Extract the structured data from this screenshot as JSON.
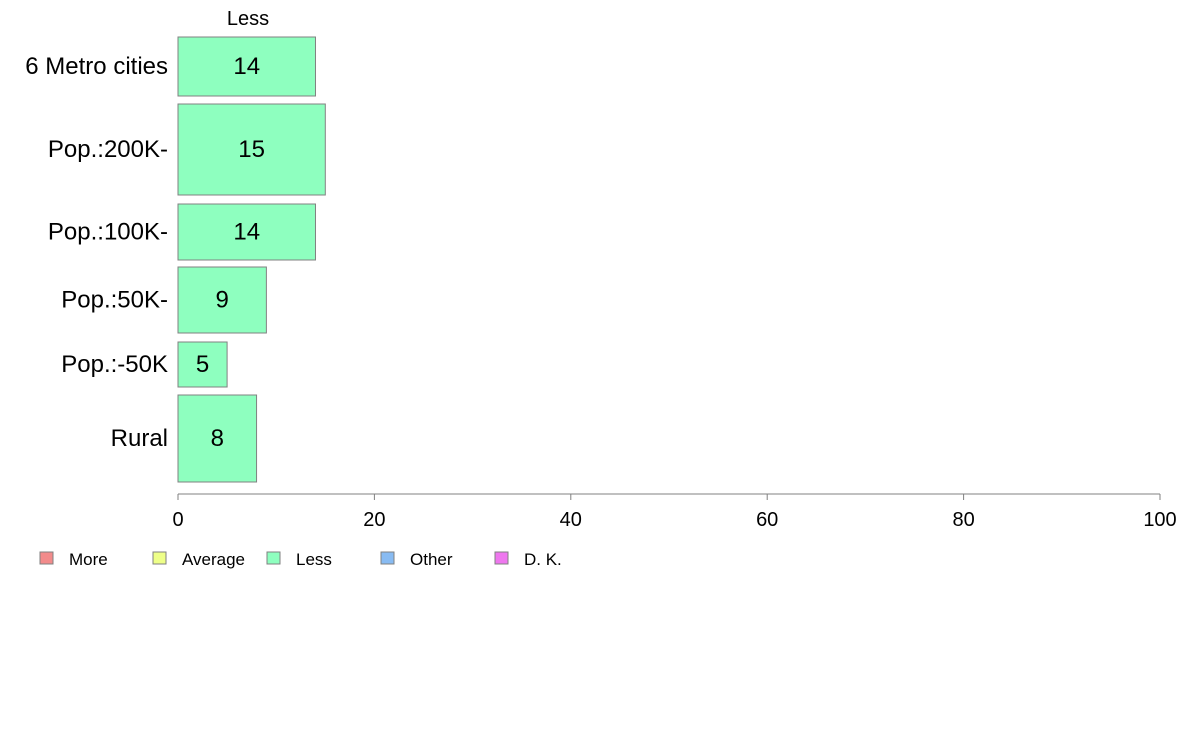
{
  "chart_data": {
    "type": "bar",
    "orientation": "horizontal",
    "variable_width": true,
    "series_title": "Less",
    "categories": [
      "6 Metro cities",
      "Pop.:200K-",
      "Pop.:100K-",
      "Pop.:50K-",
      "Pop.:-50K",
      "Rural"
    ],
    "values": [
      14,
      15,
      14,
      9,
      5,
      8
    ],
    "value_labels": [
      "14",
      "15",
      "14",
      "9",
      "5",
      "8"
    ],
    "xlim": [
      0,
      100
    ],
    "xticks": [
      0,
      20,
      40,
      60,
      80,
      100
    ],
    "xtick_labels": [
      "0",
      "20",
      "40",
      "60",
      "80",
      "100"
    ],
    "grid": false,
    "bar_color": "#8effbf",
    "bar_edge_color": "#808080",
    "legend_position": "bottom-left",
    "legend": [
      {
        "label": "More",
        "color": "#f28b8b"
      },
      {
        "label": "Average",
        "color": "#eeff88"
      },
      {
        "label": "Less",
        "color": "#8effbf"
      },
      {
        "label": "Other",
        "color": "#88bbf2"
      },
      {
        "label": "D. K.",
        "color": "#ee77ee"
      }
    ]
  }
}
